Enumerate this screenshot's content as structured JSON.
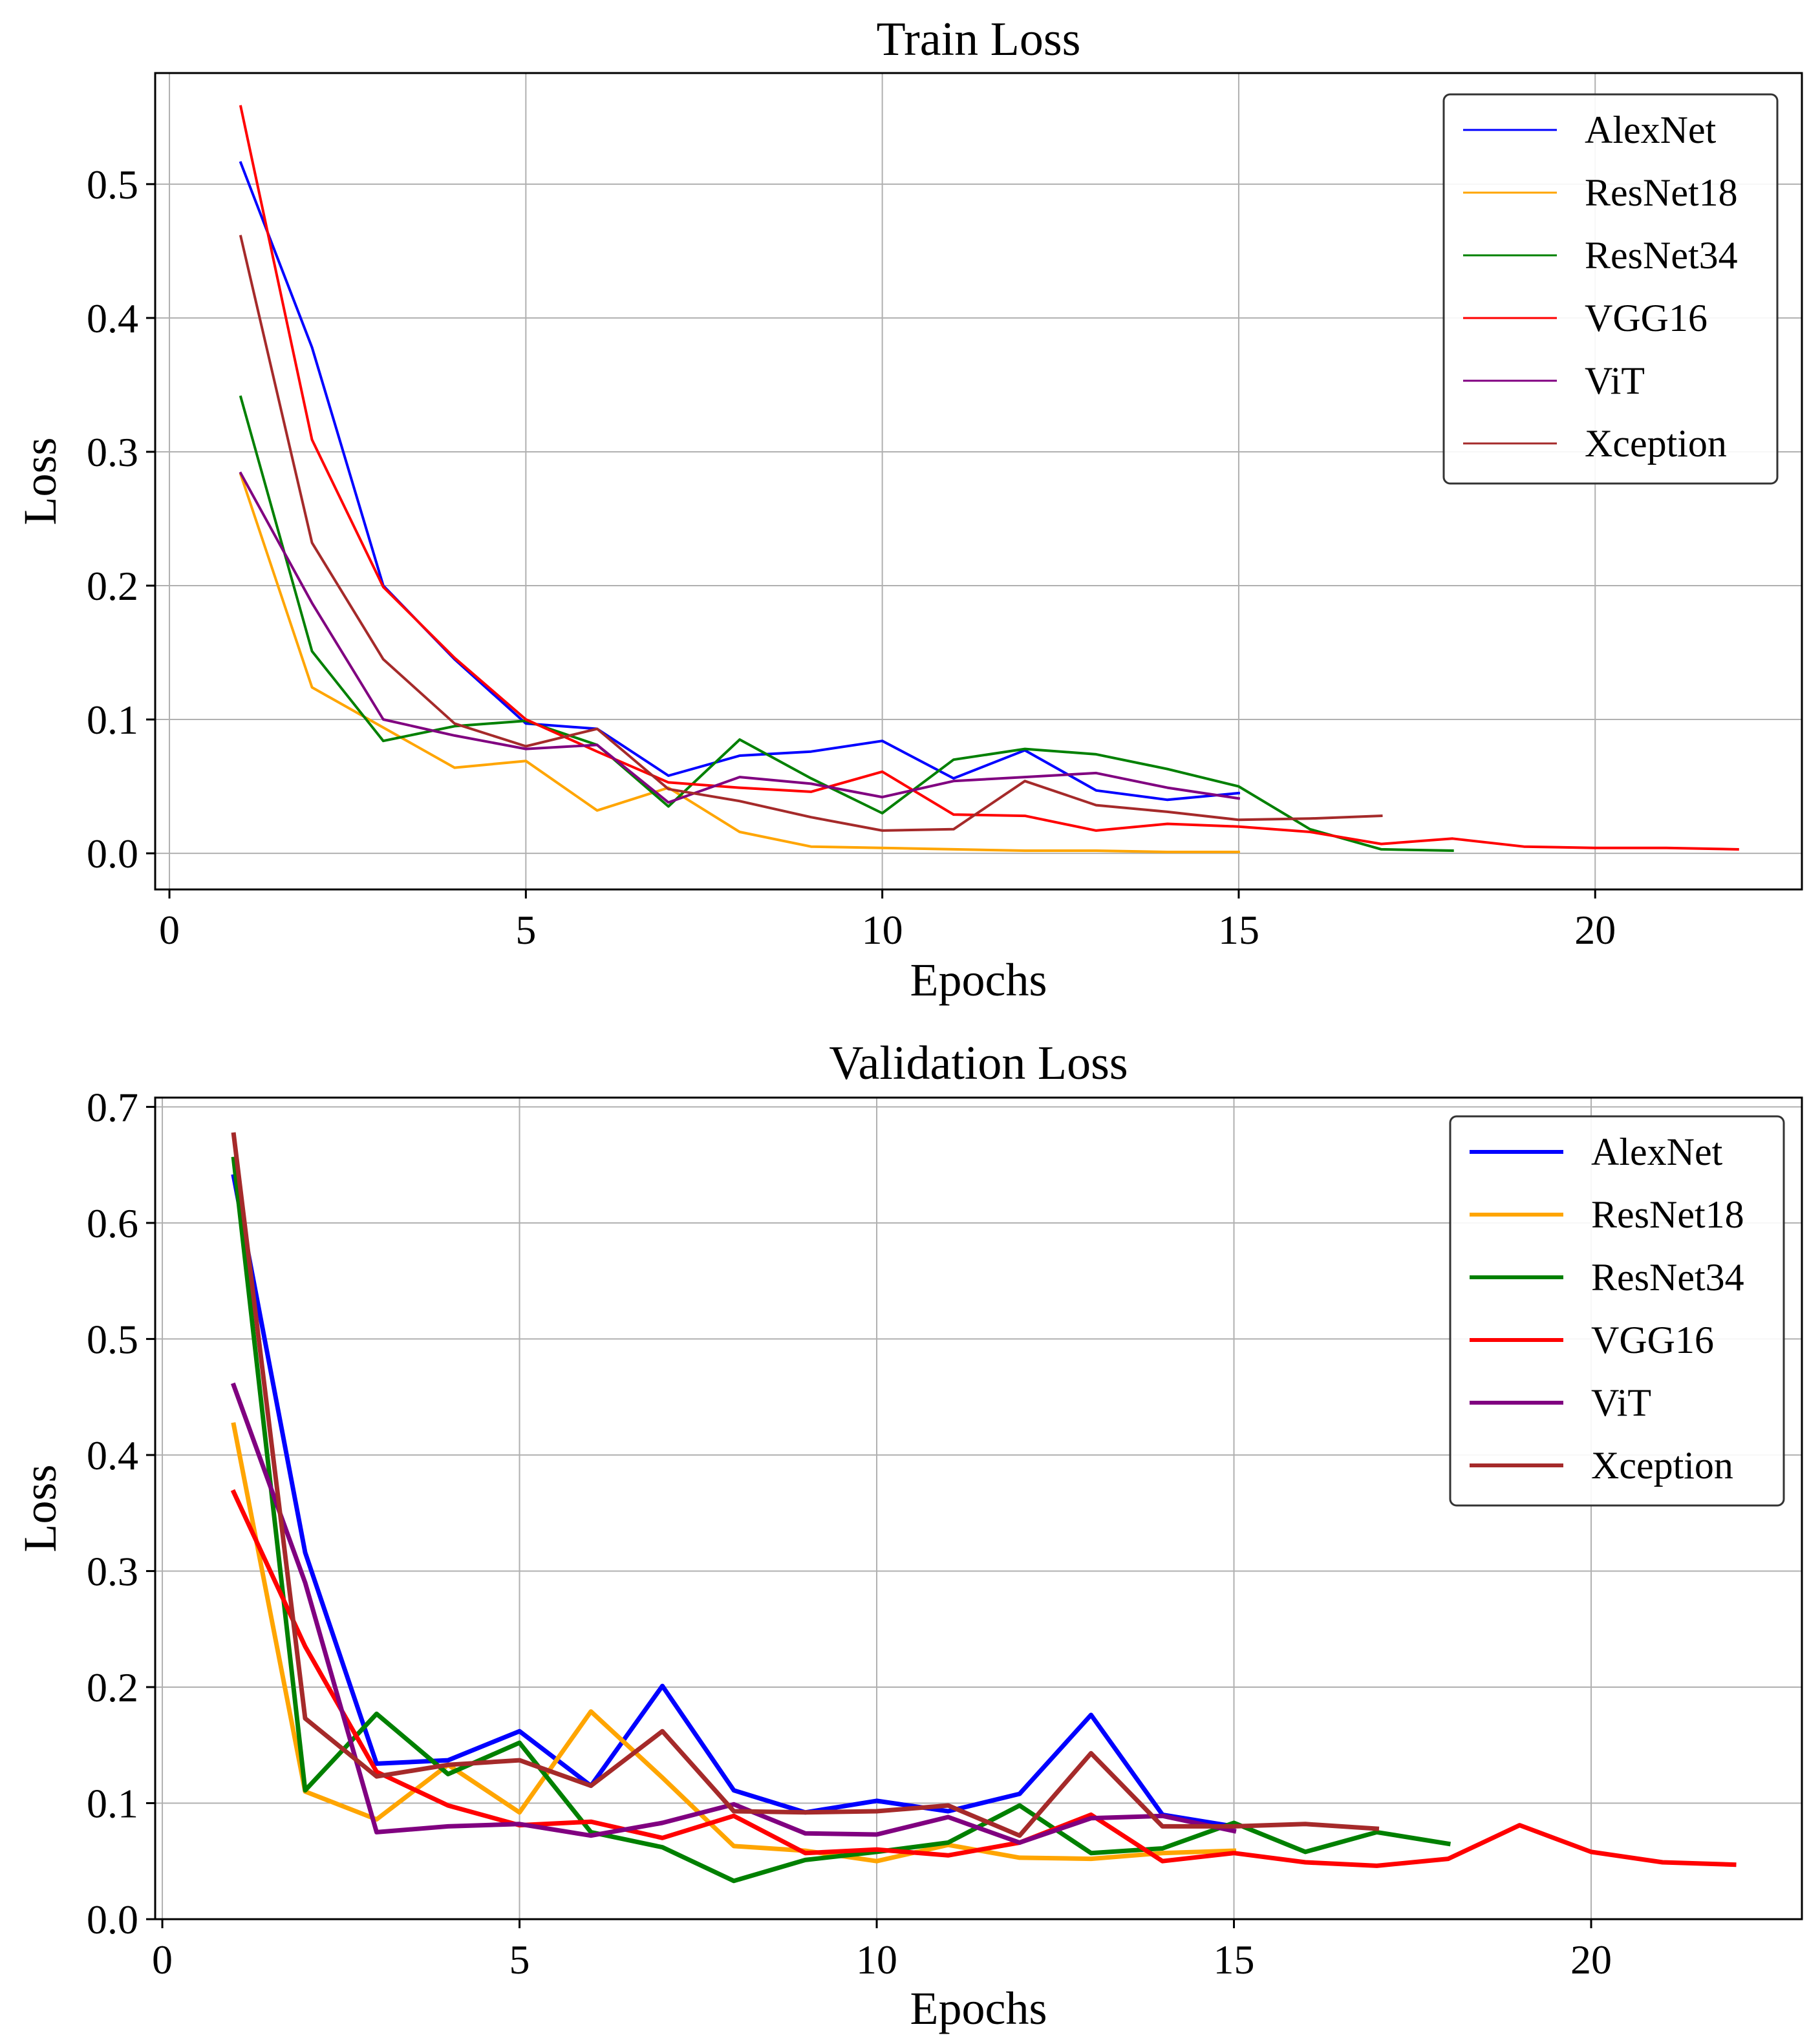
{
  "chart_data": [
    {
      "type": "line",
      "title": "Train Loss",
      "xlabel": "Epochs",
      "ylabel": "Loss",
      "xlim": [
        -0.2,
        22.9
      ],
      "ylim": [
        -0.027,
        0.583
      ],
      "xticks": [
        0,
        5,
        10,
        15,
        20
      ],
      "yticks": [
        0.0,
        0.1,
        0.2,
        0.3,
        0.4,
        0.5
      ],
      "ytick_labels": [
        "0.0",
        "0.1",
        "0.2",
        "0.3",
        "0.4",
        "0.5"
      ],
      "grid": true,
      "legend_position": "top-right",
      "series": [
        {
          "name": "AlexNet",
          "color": "#0000ff",
          "x": [
            1,
            2,
            3,
            4,
            5,
            6,
            7,
            8,
            9,
            10,
            11,
            12,
            13,
            14,
            15
          ],
          "values": [
            0.516,
            0.378,
            0.2,
            0.145,
            0.097,
            0.093,
            0.058,
            0.073,
            0.076,
            0.084,
            0.056,
            0.077,
            0.047,
            0.04,
            0.045
          ]
        },
        {
          "name": "ResNet18",
          "color": "#ffa500",
          "x": [
            1,
            2,
            3,
            4,
            5,
            6,
            7,
            8,
            9,
            10,
            11,
            12,
            13,
            14,
            15
          ],
          "values": [
            0.283,
            0.124,
            0.094,
            0.064,
            0.069,
            0.032,
            0.049,
            0.016,
            0.005,
            0.004,
            0.003,
            0.002,
            0.002,
            0.001,
            0.001
          ]
        },
        {
          "name": "ResNet34",
          "color": "#008000",
          "x": [
            1,
            2,
            3,
            4,
            5,
            6,
            7,
            8,
            9,
            10,
            11,
            12,
            13,
            14,
            15,
            16,
            17,
            18
          ],
          "values": [
            0.341,
            0.151,
            0.084,
            0.095,
            0.099,
            0.081,
            0.035,
            0.085,
            0.056,
            0.03,
            0.07,
            0.078,
            0.074,
            0.063,
            0.05,
            0.018,
            0.003,
            0.002
          ]
        },
        {
          "name": "VGG16",
          "color": "#ff0000",
          "x": [
            1,
            2,
            3,
            4,
            5,
            6,
            7,
            8,
            9,
            10,
            11,
            12,
            13,
            14,
            15,
            16,
            17,
            18,
            19,
            20,
            21,
            22
          ],
          "values": [
            0.558,
            0.309,
            0.199,
            0.146,
            0.1,
            0.076,
            0.053,
            0.049,
            0.046,
            0.061,
            0.029,
            0.028,
            0.017,
            0.022,
            0.02,
            0.016,
            0.007,
            0.011,
            0.005,
            0.004,
            0.004,
            0.003
          ]
        },
        {
          "name": "ViT",
          "color": "#800080",
          "x": [
            1,
            2,
            3,
            4,
            5,
            6,
            7,
            8,
            9,
            10,
            11,
            12,
            13,
            14,
            15
          ],
          "values": [
            0.284,
            0.187,
            0.1,
            0.088,
            0.078,
            0.081,
            0.038,
            0.057,
            0.052,
            0.042,
            0.054,
            0.057,
            0.06,
            0.049,
            0.041
          ]
        },
        {
          "name": "Xception",
          "color": "#a52a2a",
          "x": [
            1,
            2,
            3,
            4,
            5,
            6,
            7,
            8,
            9,
            10,
            11,
            12,
            13,
            14,
            15,
            16,
            17
          ],
          "values": [
            0.461,
            0.232,
            0.145,
            0.097,
            0.08,
            0.093,
            0.048,
            0.039,
            0.027,
            0.017,
            0.018,
            0.054,
            0.036,
            0.031,
            0.025,
            0.026,
            0.028
          ]
        }
      ]
    },
    {
      "type": "line",
      "title": "Validation Loss",
      "xlabel": "Epochs",
      "ylabel": "Loss",
      "xlim": [
        -0.1,
        22.95
      ],
      "ylim": [
        0.0,
        0.708
      ],
      "xticks": [
        0,
        5,
        10,
        15,
        20
      ],
      "yticks": [
        0.0,
        0.1,
        0.2,
        0.3,
        0.4,
        0.5,
        0.6,
        0.7
      ],
      "ytick_labels": [
        "0.0",
        "0.1",
        "0.2",
        "0.3",
        "0.4",
        "0.5",
        "0.6",
        "0.7"
      ],
      "grid": true,
      "legend_position": "top-right",
      "series": [
        {
          "name": "AlexNet",
          "color": "#0000ff",
          "x": [
            1,
            2,
            3,
            4,
            5,
            6,
            7,
            8,
            9,
            10,
            11,
            12,
            13,
            14,
            15
          ],
          "values": [
            0.64,
            0.316,
            0.134,
            0.137,
            0.162,
            0.115,
            0.201,
            0.111,
            0.092,
            0.102,
            0.093,
            0.108,
            0.176,
            0.09,
            0.08
          ]
        },
        {
          "name": "ResNet18",
          "color": "#ffa500",
          "x": [
            1,
            2,
            3,
            4,
            5,
            6,
            7,
            8,
            9,
            10,
            11,
            12,
            13,
            14,
            15
          ],
          "values": [
            0.426,
            0.11,
            0.086,
            0.133,
            0.092,
            0.179,
            0.122,
            0.063,
            0.059,
            0.05,
            0.064,
            0.053,
            0.052,
            0.057,
            0.059
          ]
        },
        {
          "name": "ResNet34",
          "color": "#008000",
          "x": [
            1,
            2,
            3,
            4,
            5,
            6,
            7,
            8,
            9,
            10,
            11,
            12,
            13,
            14,
            15,
            16,
            17,
            18
          ],
          "values": [
            0.655,
            0.111,
            0.177,
            0.125,
            0.152,
            0.075,
            0.062,
            0.033,
            0.051,
            0.058,
            0.066,
            0.098,
            0.057,
            0.061,
            0.083,
            0.058,
            0.075,
            0.065
          ]
        },
        {
          "name": "VGG16",
          "color": "#ff0000",
          "x": [
            1,
            2,
            3,
            4,
            5,
            6,
            7,
            8,
            9,
            10,
            11,
            12,
            13,
            14,
            15,
            16,
            17,
            18,
            19,
            20,
            21,
            22
          ],
          "values": [
            0.368,
            0.235,
            0.127,
            0.098,
            0.081,
            0.084,
            0.07,
            0.089,
            0.057,
            0.06,
            0.055,
            0.066,
            0.09,
            0.05,
            0.057,
            0.049,
            0.046,
            0.052,
            0.081,
            0.058,
            0.049,
            0.047
          ]
        },
        {
          "name": "ViT",
          "color": "#800080",
          "x": [
            1,
            2,
            3,
            4,
            5,
            6,
            7,
            8,
            9,
            10,
            11,
            12,
            13,
            14,
            15
          ],
          "values": [
            0.46,
            0.29,
            0.075,
            0.08,
            0.082,
            0.072,
            0.083,
            0.099,
            0.074,
            0.073,
            0.088,
            0.066,
            0.087,
            0.089,
            0.076
          ]
        },
        {
          "name": "Xception",
          "color": "#a52a2a",
          "x": [
            1,
            2,
            3,
            4,
            5,
            6,
            7,
            8,
            9,
            10,
            11,
            12,
            13,
            14,
            15,
            16,
            17
          ],
          "values": [
            0.676,
            0.173,
            0.123,
            0.133,
            0.137,
            0.115,
            0.162,
            0.093,
            0.092,
            0.093,
            0.098,
            0.072,
            0.143,
            0.08,
            0.08,
            0.082,
            0.078
          ]
        }
      ]
    }
  ]
}
